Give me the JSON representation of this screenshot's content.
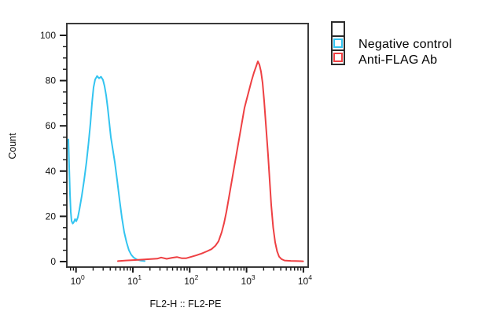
{
  "background": "#ffffff",
  "axis": {
    "color": "#3a3a3a",
    "tick_color": "#1a1a1a",
    "label_color": "#111111"
  },
  "chart_data": {
    "type": "line",
    "title": "",
    "xlabel": "FL2-H :: FL2-PE",
    "ylabel": "Count",
    "x_scale": "log10",
    "x_tick_exponents": [
      0,
      1,
      2,
      3,
      4
    ],
    "x_minor_ticks": "log-decades (2-9 per decade)",
    "xlim": [
      0.7,
      11000
    ],
    "ylim": [
      0,
      100
    ],
    "y_ticks": [
      0,
      20,
      40,
      60,
      80,
      100
    ],
    "y_minor_step": 5,
    "grid": false,
    "legend_position": "outside-top-right",
    "series": [
      {
        "name": "Negative control",
        "color": "#33c4f0",
        "points": [
          [
            0.734,
            54
          ],
          [
            0.758,
            42
          ],
          [
            0.782,
            30
          ],
          [
            0.808,
            22
          ],
          [
            0.834,
            18
          ],
          [
            0.875,
            16.8
          ],
          [
            0.918,
            17.5
          ],
          [
            0.963,
            18.8
          ],
          [
            1.01,
            17.8
          ],
          [
            1.076,
            19.5
          ],
          [
            1.147,
            23
          ],
          [
            1.262,
            29
          ],
          [
            1.387,
            36
          ],
          [
            1.527,
            44
          ],
          [
            1.655,
            52
          ],
          [
            1.791,
            61
          ],
          [
            1.91,
            70
          ],
          [
            2.034,
            77
          ],
          [
            2.168,
            80.5
          ],
          [
            2.349,
            82
          ],
          [
            2.542,
            81
          ],
          [
            2.754,
            81.7
          ],
          [
            2.979,
            80.3
          ],
          [
            3.177,
            77.5
          ],
          [
            3.388,
            73.5
          ],
          [
            3.606,
            68
          ],
          [
            3.846,
            61.5
          ],
          [
            4.101,
            55
          ],
          [
            4.436,
            49.5
          ],
          [
            4.808,
            44
          ],
          [
            5.284,
            36
          ],
          [
            5.821,
            27.5
          ],
          [
            6.397,
            19.5
          ],
          [
            7.047,
            13
          ],
          [
            7.745,
            8.5
          ],
          [
            8.531,
            5
          ],
          [
            9.376,
            3
          ],
          [
            10.33,
            1.8
          ],
          [
            11.72,
            0.9
          ],
          [
            13.74,
            0.4
          ],
          [
            16.11,
            0.2
          ]
        ]
      },
      {
        "name": "Anti-FLAG Ab",
        "color": "#ee4043",
        "points": [
          [
            5.46,
            0.2
          ],
          [
            7.5,
            0.5
          ],
          [
            11.0,
            0.7
          ],
          [
            15.1,
            0.9
          ],
          [
            20.8,
            1.1
          ],
          [
            26.8,
            1.3
          ],
          [
            31.5,
            1.8
          ],
          [
            39.3,
            1.2
          ],
          [
            49.1,
            1.7
          ],
          [
            59.5,
            2.0
          ],
          [
            72.0,
            1.5
          ],
          [
            87.2,
            1.5
          ],
          [
            108.9,
            2.2
          ],
          [
            131.9,
            2.8
          ],
          [
            159.6,
            3.5
          ],
          [
            199.5,
            4.5
          ],
          [
            241.7,
            5.5
          ],
          [
            283.2,
            7
          ],
          [
            322,
            9
          ],
          [
            365.6,
            13
          ],
          [
            402,
            17
          ],
          [
            442.6,
            22
          ],
          [
            486.6,
            28
          ],
          [
            535.5,
            34
          ],
          [
            589,
            40
          ],
          [
            648.6,
            46
          ],
          [
            713,
            52
          ],
          [
            784.9,
            58
          ],
          [
            863.4,
            64
          ],
          [
            920.4,
            68
          ],
          [
            1012,
            72
          ],
          [
            1114,
            76
          ],
          [
            1225,
            80
          ],
          [
            1349,
            83.5
          ],
          [
            1483,
            86.5
          ],
          [
            1582,
            88.5
          ],
          [
            1686,
            87
          ],
          [
            1795,
            84
          ],
          [
            1914,
            79
          ],
          [
            2040,
            71
          ],
          [
            2209,
            59
          ],
          [
            2393,
            47
          ],
          [
            2550,
            36
          ],
          [
            2716,
            25
          ],
          [
            2944,
            15
          ],
          [
            3184,
            8.5
          ],
          [
            3451,
            4.5
          ],
          [
            3733,
            2.2
          ],
          [
            4111,
            1.1
          ],
          [
            4670,
            0.5
          ],
          [
            6026,
            0.3
          ],
          [
            8279,
            0.2
          ],
          [
            9900,
            0.15
          ]
        ]
      }
    ]
  }
}
